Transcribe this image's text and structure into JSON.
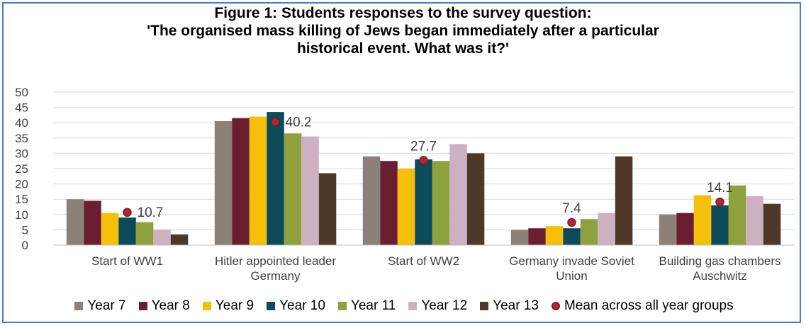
{
  "chart_data": {
    "type": "bar",
    "title_lines": [
      "Figure 1: Students responses to the survey question:",
      "'The organised mass killing of Jews began immediately after a particular",
      "historical event. What was it?'"
    ],
    "categories": [
      [
        "Start of WW1"
      ],
      [
        "Hitler appointed leader",
        "Germany"
      ],
      [
        "Start of WW2"
      ],
      [
        "Germany invade Soviet",
        "Union"
      ],
      [
        "Building gas chambers",
        "Auschwitz"
      ]
    ],
    "ylim": [
      0,
      50
    ],
    "yticks": [
      0,
      5,
      10,
      15,
      20,
      25,
      30,
      35,
      40,
      45,
      50
    ],
    "grid": true,
    "legend_position": "bottom",
    "series": [
      {
        "name": "Year 7",
        "color": "#8c8179",
        "values": [
          15.0,
          40.5,
          29.0,
          5.0,
          10.0
        ]
      },
      {
        "name": "Year 8",
        "color": "#6b1e32",
        "values": [
          14.5,
          41.5,
          27.5,
          5.5,
          10.5
        ]
      },
      {
        "name": "Year 9",
        "color": "#f5bf0a",
        "values": [
          10.5,
          42.0,
          25.0,
          6.2,
          16.3
        ]
      },
      {
        "name": "Year 10",
        "color": "#0d4b5a",
        "values": [
          9.0,
          43.5,
          28.0,
          5.5,
          13.0
        ]
      },
      {
        "name": "Year 11",
        "color": "#8fa03f",
        "values": [
          7.5,
          36.5,
          27.5,
          8.5,
          19.5
        ]
      },
      {
        "name": "Year 12",
        "color": "#cdb1c3",
        "values": [
          5.0,
          35.5,
          33.0,
          10.5,
          16.0
        ]
      },
      {
        "name": "Year 13",
        "color": "#4e3828",
        "values": [
          3.5,
          23.5,
          30.0,
          29.0,
          13.5
        ]
      }
    ],
    "mean": {
      "name": "Mean across all year groups",
      "values": [
        10.7,
        40.2,
        27.7,
        7.4,
        14.1
      ],
      "labels": [
        "10.7",
        "40.2",
        "27.7",
        "7.4",
        "14.1"
      ],
      "color": "#b3263a"
    }
  }
}
